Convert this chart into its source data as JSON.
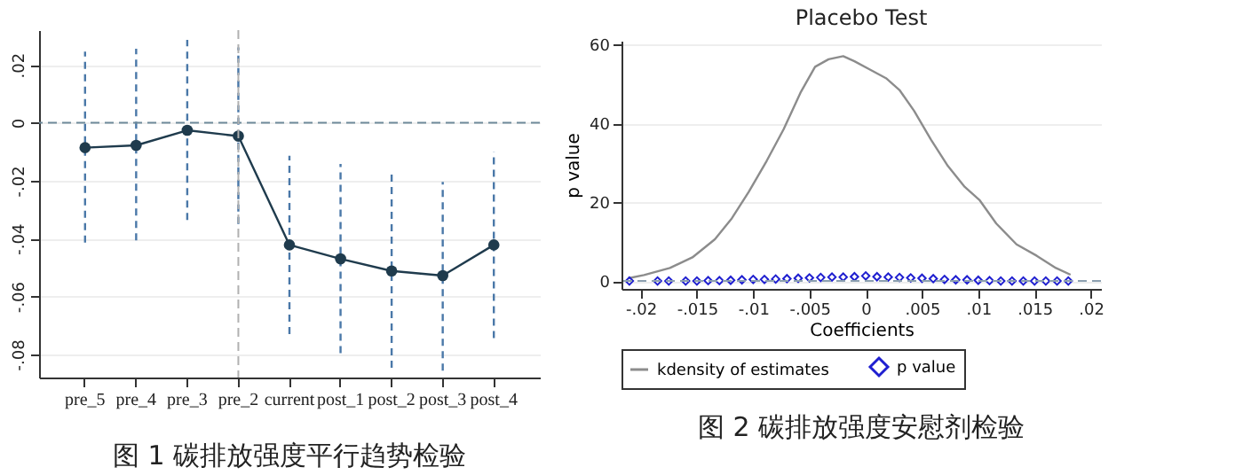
{
  "chart_data": [
    {
      "type": "line",
      "categories": [
        "pre_5",
        "pre_4",
        "pre_3",
        "pre_2",
        "current",
        "post_1",
        "post_2",
        "post_3",
        "post_4"
      ],
      "series": [
        {
          "color": "#1f3b4d",
          "marker": "circle",
          "values": [
            -0.0086,
            -0.0078,
            -0.0026,
            -0.0046,
            -0.0422,
            -0.047,
            -0.0512,
            -0.0528,
            -0.0422
          ],
          "errors": [
            [
              -0.0414,
              0.0246
            ],
            [
              -0.0406,
              0.0256
            ],
            [
              -0.0336,
              0.0286
            ],
            [
              -0.035,
              0.026
            ],
            [
              -0.073,
              -0.0114
            ],
            [
              -0.0796,
              -0.0142
            ],
            [
              -0.0846,
              -0.0178
            ],
            [
              -0.0856,
              -0.0204
            ],
            [
              -0.0744,
              -0.01
            ]
          ]
        }
      ],
      "ylim": [
        -0.088,
        0.032
      ],
      "yticks": [
        {
          "value": -0.08,
          "label": "-.08"
        },
        {
          "value": -0.06,
          "label": "-.06"
        },
        {
          "value": -0.04,
          "label": "-.04"
        },
        {
          "value": -0.02,
          "label": "-.02"
        },
        0,
        {
          "value": 0.02,
          "label": ".02"
        }
      ],
      "grid": "y",
      "ref_lines": [
        {
          "axis": "y",
          "value": 0,
          "line_style": "dashed",
          "color": "#6f8a9a"
        },
        {
          "axis": "x",
          "value": "pre_2",
          "line_style": "dashed",
          "color": "#b0b0b0"
        }
      ],
      "annotations": [
        "图 1 碳排放强度平行趋势检验"
      ]
    },
    {
      "type": "line",
      "title": "Placebo Test",
      "xlabel": "Coefficients",
      "ylabel": "p value",
      "series": [
        {
          "name": "kdensity of estimates",
          "type": "line",
          "color": "#8c8c8c",
          "x": [
            -0.0211,
            -0.0197,
            -0.0174,
            -0.0154,
            -0.0134,
            -0.0119,
            -0.0104,
            -0.0088,
            -0.0073,
            -0.0058,
            -0.0045,
            -0.0033,
            -0.002,
            -0.001,
            0.0003,
            0.0018,
            0.003,
            0.0043,
            0.0058,
            0.0073,
            0.0088,
            0.0101,
            0.0116,
            0.0134,
            0.0152,
            0.0169,
            0.0182
          ],
          "values": [
            0.7,
            1.5,
            3.3,
            6.0,
            10.6,
            15.9,
            22.6,
            30.5,
            38.5,
            47.8,
            54.4,
            56.3,
            57.1,
            55.8,
            53.8,
            51.5,
            48.5,
            43.2,
            35.9,
            29.2,
            23.9,
            20.6,
            14.6,
            9.3,
            6.4,
            3.3,
            1.6
          ]
        },
        {
          "name": "p value",
          "type": "scatter",
          "color": "#1f1fd0",
          "marker": "diamond",
          "x": [
            -0.021,
            -0.0185,
            -0.0175,
            -0.016,
            -0.015,
            -0.014,
            -0.013,
            -0.012,
            -0.011,
            -0.01,
            -0.009,
            -0.008,
            -0.007,
            -0.006,
            -0.005,
            -0.004,
            -0.003,
            -0.002,
            -0.001,
            0,
            0.001,
            0.002,
            0.003,
            0.004,
            0.005,
            0.006,
            0.007,
            0.008,
            0.009,
            0.01,
            0.011,
            0.012,
            0.013,
            0.014,
            0.015,
            0.016,
            0.017,
            0.018
          ],
          "values": [
            0,
            0,
            0,
            0,
            0,
            0.1,
            0.1,
            0.2,
            0.3,
            0.4,
            0.4,
            0.5,
            0.6,
            0.7,
            0.8,
            0.9,
            1.0,
            1.0,
            1.1,
            1.3,
            1.1,
            1.0,
            0.9,
            0.8,
            0.7,
            0.6,
            0.4,
            0.3,
            0.3,
            0.2,
            0.1,
            0,
            0,
            0,
            0,
            0,
            0,
            0
          ]
        }
      ],
      "xlim": [
        -0.0217,
        0.0209
      ],
      "xticks": [
        {
          "value": -0.02,
          "label": "-.02"
        },
        {
          "value": -0.015,
          "label": "-.015"
        },
        {
          "value": -0.01,
          "label": "-.01"
        },
        {
          "value": -0.005,
          "label": "-.005"
        },
        0,
        {
          "value": 0.005,
          "label": ".005"
        },
        {
          "value": 0.01,
          "label": ".01"
        },
        {
          "value": 0.015,
          "label": ".015"
        },
        {
          "value": 0.02,
          "label": ".02"
        }
      ],
      "ylim": [
        -2,
        61
      ],
      "yticks": [
        0,
        20,
        40,
        60
      ],
      "grid": "y",
      "legend": "bottom",
      "ref_lines": [
        {
          "axis": "y",
          "value": 0,
          "line_style": "dashed",
          "color": "#8ca0b0"
        }
      ],
      "annotations": [
        "图 2 碳排放强度安慰剂检验"
      ]
    }
  ]
}
